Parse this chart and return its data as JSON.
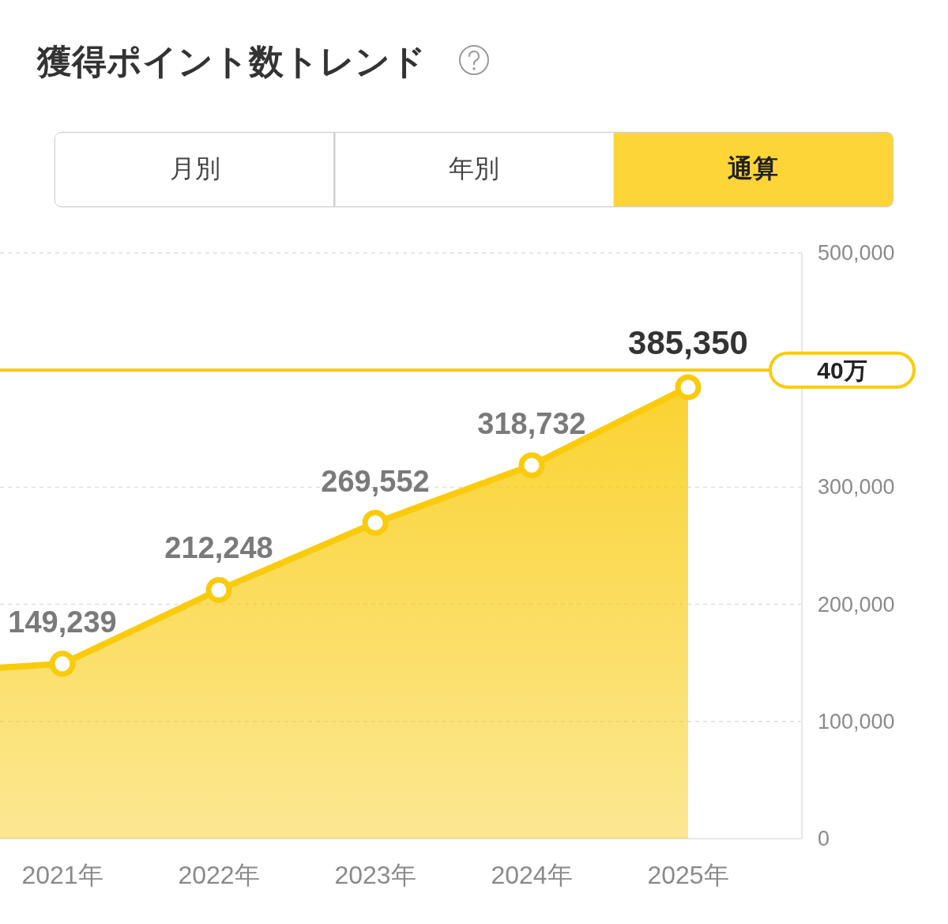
{
  "chart_data": {
    "type": "area",
    "title": "獲得ポイント数トレンド",
    "annotations": [
      "月別",
      "年別",
      "通算"
    ],
    "categories": [
      null,
      "2021年",
      "2022年",
      "2023年",
      "2024年",
      "2025年"
    ],
    "series": [
      {
        "color": "#f9cb0d",
        "values": [
          141000,
          149239,
          212248,
          269552,
          318732,
          385350
        ],
        "value_labels": [
          null,
          "149,239",
          "212,248",
          "269,552",
          "318,732",
          "385,350"
        ]
      }
    ],
    "ylim": [
      0,
      500000
    ],
    "yticks": [
      0,
      {
        "value": 100000,
        "label": "100,000"
      },
      {
        "value": 200000,
        "label": "200,000"
      },
      {
        "value": 300000,
        "label": "300,000"
      },
      {
        "value": 500000,
        "label": "500,000"
      }
    ],
    "grid": "y",
    "marker": "circle",
    "ref_lines": [
      {
        "axis": "y",
        "value": 400000,
        "label": "40万",
        "color": "#f9cb0d"
      }
    ]
  }
}
